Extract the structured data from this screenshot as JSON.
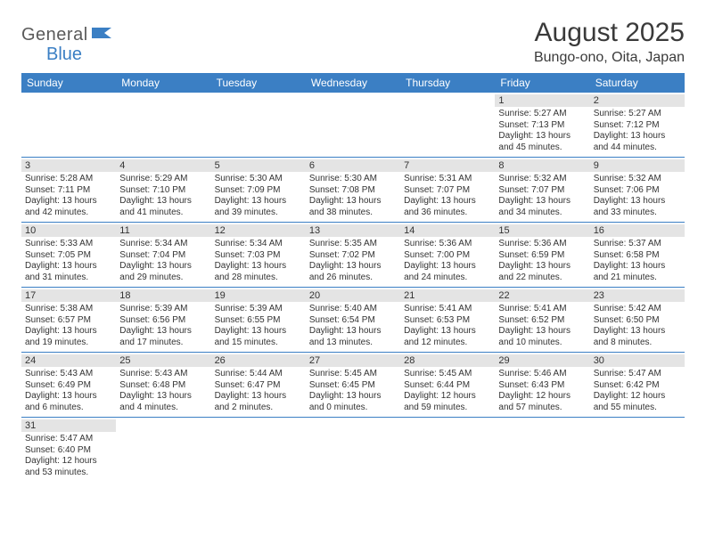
{
  "brand": {
    "text1": "General",
    "text2": "Blue"
  },
  "title": "August 2025",
  "location": "Bungo-ono, Oita, Japan",
  "colors": {
    "headerBlue": "#3b7fc4",
    "dayStripe": "#e4e4e4",
    "text": "#333333",
    "rule": "#3b7fc4"
  },
  "dayHeaders": [
    "Sunday",
    "Monday",
    "Tuesday",
    "Wednesday",
    "Thursday",
    "Friday",
    "Saturday"
  ],
  "weeks": [
    [
      null,
      null,
      null,
      null,
      null,
      {
        "n": "1",
        "sr": "Sunrise: 5:27 AM",
        "ss": "Sunset: 7:13 PM",
        "d1": "Daylight: 13 hours",
        "d2": "and 45 minutes."
      },
      {
        "n": "2",
        "sr": "Sunrise: 5:27 AM",
        "ss": "Sunset: 7:12 PM",
        "d1": "Daylight: 13 hours",
        "d2": "and 44 minutes."
      }
    ],
    [
      {
        "n": "3",
        "sr": "Sunrise: 5:28 AM",
        "ss": "Sunset: 7:11 PM",
        "d1": "Daylight: 13 hours",
        "d2": "and 42 minutes."
      },
      {
        "n": "4",
        "sr": "Sunrise: 5:29 AM",
        "ss": "Sunset: 7:10 PM",
        "d1": "Daylight: 13 hours",
        "d2": "and 41 minutes."
      },
      {
        "n": "5",
        "sr": "Sunrise: 5:30 AM",
        "ss": "Sunset: 7:09 PM",
        "d1": "Daylight: 13 hours",
        "d2": "and 39 minutes."
      },
      {
        "n": "6",
        "sr": "Sunrise: 5:30 AM",
        "ss": "Sunset: 7:08 PM",
        "d1": "Daylight: 13 hours",
        "d2": "and 38 minutes."
      },
      {
        "n": "7",
        "sr": "Sunrise: 5:31 AM",
        "ss": "Sunset: 7:07 PM",
        "d1": "Daylight: 13 hours",
        "d2": "and 36 minutes."
      },
      {
        "n": "8",
        "sr": "Sunrise: 5:32 AM",
        "ss": "Sunset: 7:07 PM",
        "d1": "Daylight: 13 hours",
        "d2": "and 34 minutes."
      },
      {
        "n": "9",
        "sr": "Sunrise: 5:32 AM",
        "ss": "Sunset: 7:06 PM",
        "d1": "Daylight: 13 hours",
        "d2": "and 33 minutes."
      }
    ],
    [
      {
        "n": "10",
        "sr": "Sunrise: 5:33 AM",
        "ss": "Sunset: 7:05 PM",
        "d1": "Daylight: 13 hours",
        "d2": "and 31 minutes."
      },
      {
        "n": "11",
        "sr": "Sunrise: 5:34 AM",
        "ss": "Sunset: 7:04 PM",
        "d1": "Daylight: 13 hours",
        "d2": "and 29 minutes."
      },
      {
        "n": "12",
        "sr": "Sunrise: 5:34 AM",
        "ss": "Sunset: 7:03 PM",
        "d1": "Daylight: 13 hours",
        "d2": "and 28 minutes."
      },
      {
        "n": "13",
        "sr": "Sunrise: 5:35 AM",
        "ss": "Sunset: 7:02 PM",
        "d1": "Daylight: 13 hours",
        "d2": "and 26 minutes."
      },
      {
        "n": "14",
        "sr": "Sunrise: 5:36 AM",
        "ss": "Sunset: 7:00 PM",
        "d1": "Daylight: 13 hours",
        "d2": "and 24 minutes."
      },
      {
        "n": "15",
        "sr": "Sunrise: 5:36 AM",
        "ss": "Sunset: 6:59 PM",
        "d1": "Daylight: 13 hours",
        "d2": "and 22 minutes."
      },
      {
        "n": "16",
        "sr": "Sunrise: 5:37 AM",
        "ss": "Sunset: 6:58 PM",
        "d1": "Daylight: 13 hours",
        "d2": "and 21 minutes."
      }
    ],
    [
      {
        "n": "17",
        "sr": "Sunrise: 5:38 AM",
        "ss": "Sunset: 6:57 PM",
        "d1": "Daylight: 13 hours",
        "d2": "and 19 minutes."
      },
      {
        "n": "18",
        "sr": "Sunrise: 5:39 AM",
        "ss": "Sunset: 6:56 PM",
        "d1": "Daylight: 13 hours",
        "d2": "and 17 minutes."
      },
      {
        "n": "19",
        "sr": "Sunrise: 5:39 AM",
        "ss": "Sunset: 6:55 PM",
        "d1": "Daylight: 13 hours",
        "d2": "and 15 minutes."
      },
      {
        "n": "20",
        "sr": "Sunrise: 5:40 AM",
        "ss": "Sunset: 6:54 PM",
        "d1": "Daylight: 13 hours",
        "d2": "and 13 minutes."
      },
      {
        "n": "21",
        "sr": "Sunrise: 5:41 AM",
        "ss": "Sunset: 6:53 PM",
        "d1": "Daylight: 13 hours",
        "d2": "and 12 minutes."
      },
      {
        "n": "22",
        "sr": "Sunrise: 5:41 AM",
        "ss": "Sunset: 6:52 PM",
        "d1": "Daylight: 13 hours",
        "d2": "and 10 minutes."
      },
      {
        "n": "23",
        "sr": "Sunrise: 5:42 AM",
        "ss": "Sunset: 6:50 PM",
        "d1": "Daylight: 13 hours",
        "d2": "and 8 minutes."
      }
    ],
    [
      {
        "n": "24",
        "sr": "Sunrise: 5:43 AM",
        "ss": "Sunset: 6:49 PM",
        "d1": "Daylight: 13 hours",
        "d2": "and 6 minutes."
      },
      {
        "n": "25",
        "sr": "Sunrise: 5:43 AM",
        "ss": "Sunset: 6:48 PM",
        "d1": "Daylight: 13 hours",
        "d2": "and 4 minutes."
      },
      {
        "n": "26",
        "sr": "Sunrise: 5:44 AM",
        "ss": "Sunset: 6:47 PM",
        "d1": "Daylight: 13 hours",
        "d2": "and 2 minutes."
      },
      {
        "n": "27",
        "sr": "Sunrise: 5:45 AM",
        "ss": "Sunset: 6:45 PM",
        "d1": "Daylight: 13 hours",
        "d2": "and 0 minutes."
      },
      {
        "n": "28",
        "sr": "Sunrise: 5:45 AM",
        "ss": "Sunset: 6:44 PM",
        "d1": "Daylight: 12 hours",
        "d2": "and 59 minutes."
      },
      {
        "n": "29",
        "sr": "Sunrise: 5:46 AM",
        "ss": "Sunset: 6:43 PM",
        "d1": "Daylight: 12 hours",
        "d2": "and 57 minutes."
      },
      {
        "n": "30",
        "sr": "Sunrise: 5:47 AM",
        "ss": "Sunset: 6:42 PM",
        "d1": "Daylight: 12 hours",
        "d2": "and 55 minutes."
      }
    ],
    [
      {
        "n": "31",
        "sr": "Sunrise: 5:47 AM",
        "ss": "Sunset: 6:40 PM",
        "d1": "Daylight: 12 hours",
        "d2": "and 53 minutes."
      },
      null,
      null,
      null,
      null,
      null,
      null
    ]
  ]
}
